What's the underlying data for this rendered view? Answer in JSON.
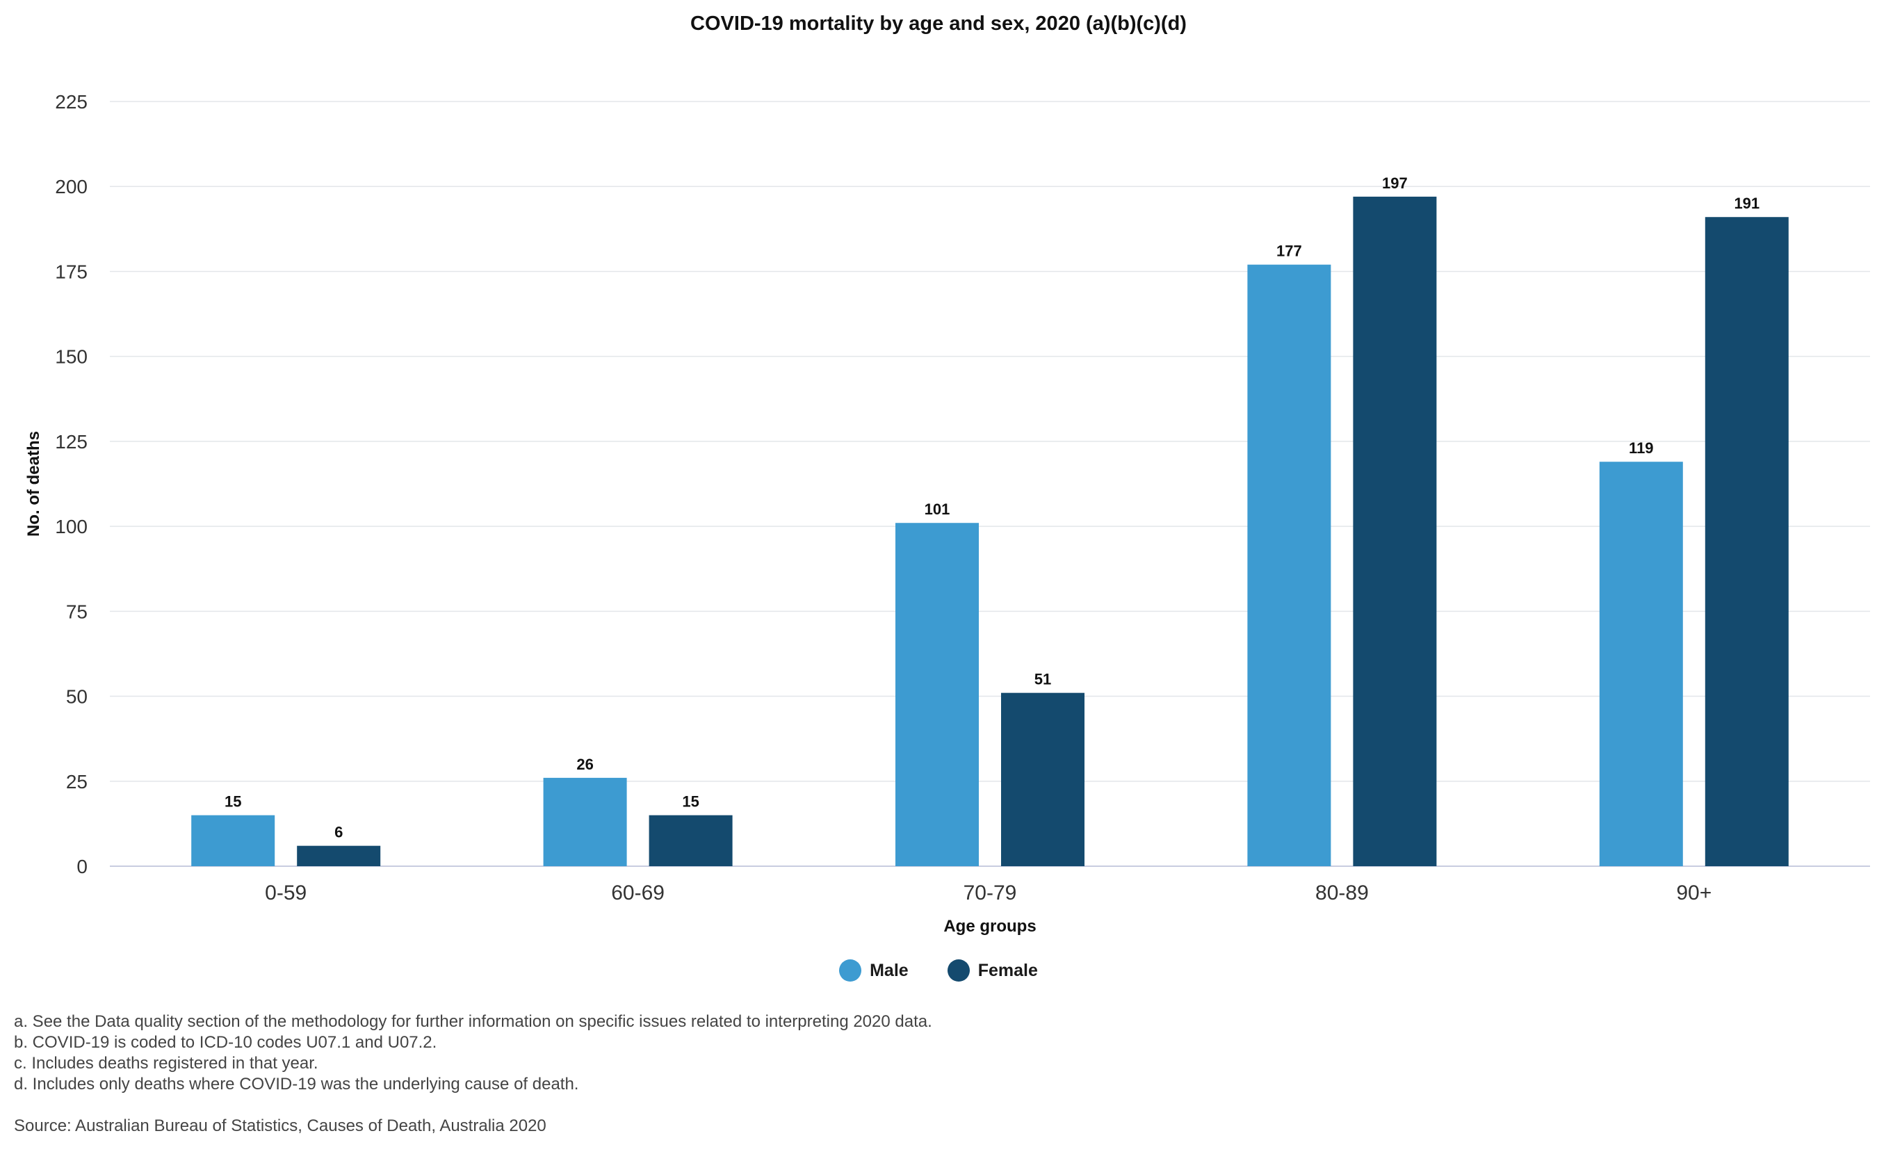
{
  "chart_data": {
    "type": "bar",
    "title": "COVID-19 mortality by age and sex, 2020 (a)(b)(c)(d)",
    "xlabel": "Age groups",
    "ylabel": "No. of deaths",
    "categories": [
      "0-59",
      "60-69",
      "70-79",
      "80-89",
      "90+"
    ],
    "series": [
      {
        "name": "Male",
        "color": "#3d9bd1",
        "values": [
          15,
          26,
          101,
          177,
          119
        ]
      },
      {
        "name": "Female",
        "color": "#144a6e",
        "values": [
          6,
          15,
          51,
          197,
          191
        ]
      }
    ],
    "ylim": [
      0,
      225
    ],
    "yticks": [
      0,
      25,
      50,
      75,
      100,
      125,
      150,
      175,
      200,
      225
    ],
    "grid": true,
    "legend_position": "bottom-center",
    "data_labels": true
  },
  "notes": [
    "a. See the Data quality section of the methodology for further information on specific issues related to interpreting 2020 data.",
    "b. COVID-19 is coded to ICD-10 codes U07.1 and U07.2.",
    "c. Includes deaths registered in that year.",
    "d. Includes only deaths where COVID-19 was the underlying cause of death."
  ],
  "source": "Source: Australian Bureau of Statistics, Causes of Death, Australia 2020"
}
